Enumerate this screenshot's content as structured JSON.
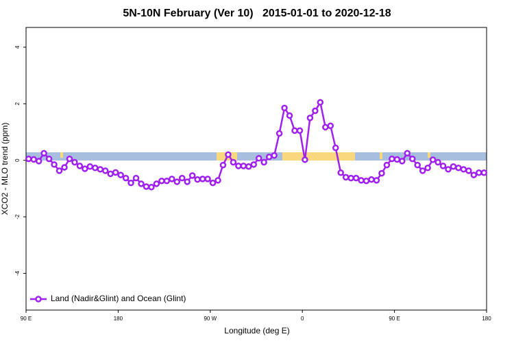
{
  "chart_data": {
    "type": "line",
    "title": "5N-10N February (Ver 10)   2015-01-01 to 2020-12-18",
    "x_label": "Longitude (deg E)",
    "y_label": "XCO2 - MLO trend (ppm)",
    "x": [
      92.5,
      97.5,
      102.5,
      107.5,
      112.5,
      117.5,
      122.5,
      127.5,
      132.5,
      137.5,
      142.5,
      147.5,
      152.5,
      157.5,
      162.5,
      167.5,
      172.5,
      177.5,
      182.5,
      187.5,
      192.5,
      197.5,
      202.5,
      207.5,
      212.5,
      217.5,
      222.5,
      227.5,
      232.5,
      237.5,
      242.5,
      247.5,
      252.5,
      257.5,
      262.5,
      267.5,
      272.5,
      277.5,
      282.5,
      287.5,
      292.5,
      297.5,
      302.5,
      307.5,
      312.5,
      317.5,
      322.5,
      327.5,
      332.5,
      337.5,
      342.5,
      347.5,
      352.5,
      357.5,
      362.5,
      367.5,
      372.5,
      377.5,
      382.5,
      387.5,
      392.5,
      397.5,
      402.5,
      407.5,
      412.5,
      417.5,
      422.5,
      427.5,
      432.5,
      437.5,
      442.5,
      447.5,
      452.5,
      457.5,
      462.5,
      467.5,
      472.5,
      477.5,
      482.5,
      487.5,
      492.5,
      497.5,
      502.5,
      507.5,
      512.5,
      517.5,
      522.5,
      527.5,
      532.5,
      537.5
    ],
    "series": [
      {
        "name": "Land (Nadir&Glint) and Ocean (Glint)",
        "color": "#a020f0",
        "values": [
          0.05,
          0.03,
          -0.03,
          0.25,
          0.05,
          -0.15,
          -0.37,
          -0.25,
          0.05,
          -0.07,
          -0.2,
          -0.3,
          -0.22,
          -0.27,
          -0.32,
          -0.37,
          -0.48,
          -0.43,
          -0.52,
          -0.63,
          -0.8,
          -0.63,
          -0.83,
          -0.93,
          -0.95,
          -0.83,
          -0.73,
          -0.73,
          -0.66,
          -0.76,
          -0.63,
          -0.76,
          -0.54,
          -0.68,
          -0.66,
          -0.66,
          -0.8,
          -0.71,
          -0.17,
          0.2,
          -0.07,
          -0.2,
          -0.2,
          -0.22,
          -0.15,
          0.07,
          -0.07,
          0.12,
          0.17,
          0.95,
          1.85,
          1.58,
          1.05,
          1.05,
          0.02,
          1.5,
          1.75,
          2.05,
          1.17,
          1.22,
          0.44,
          -0.44,
          -0.6,
          -0.63,
          -0.63,
          -0.71,
          -0.73,
          -0.68,
          -0.71,
          -0.46,
          -0.17,
          0.05,
          0.03,
          -0.03,
          0.25,
          0.05,
          -0.17,
          -0.37,
          -0.27,
          0.02,
          -0.07,
          -0.2,
          -0.32,
          -0.22,
          -0.27,
          -0.32,
          -0.37,
          -0.52,
          -0.44,
          -0.44
        ]
      }
    ],
    "xlim": [
      90,
      540
    ],
    "xticks": [
      {
        "value": 90,
        "label": "90 E"
      },
      {
        "value": 180,
        "label": "180"
      },
      {
        "value": 270,
        "label": "90 W"
      },
      {
        "value": 360,
        "label": "0"
      },
      {
        "value": 450,
        "label": "90 E"
      },
      {
        "value": 540,
        "label": "180"
      }
    ],
    "ylim": [
      -5.3,
      4.7
    ],
    "yticks": [
      -4,
      -2,
      0,
      2,
      4
    ],
    "legend": "bottomleft"
  }
}
